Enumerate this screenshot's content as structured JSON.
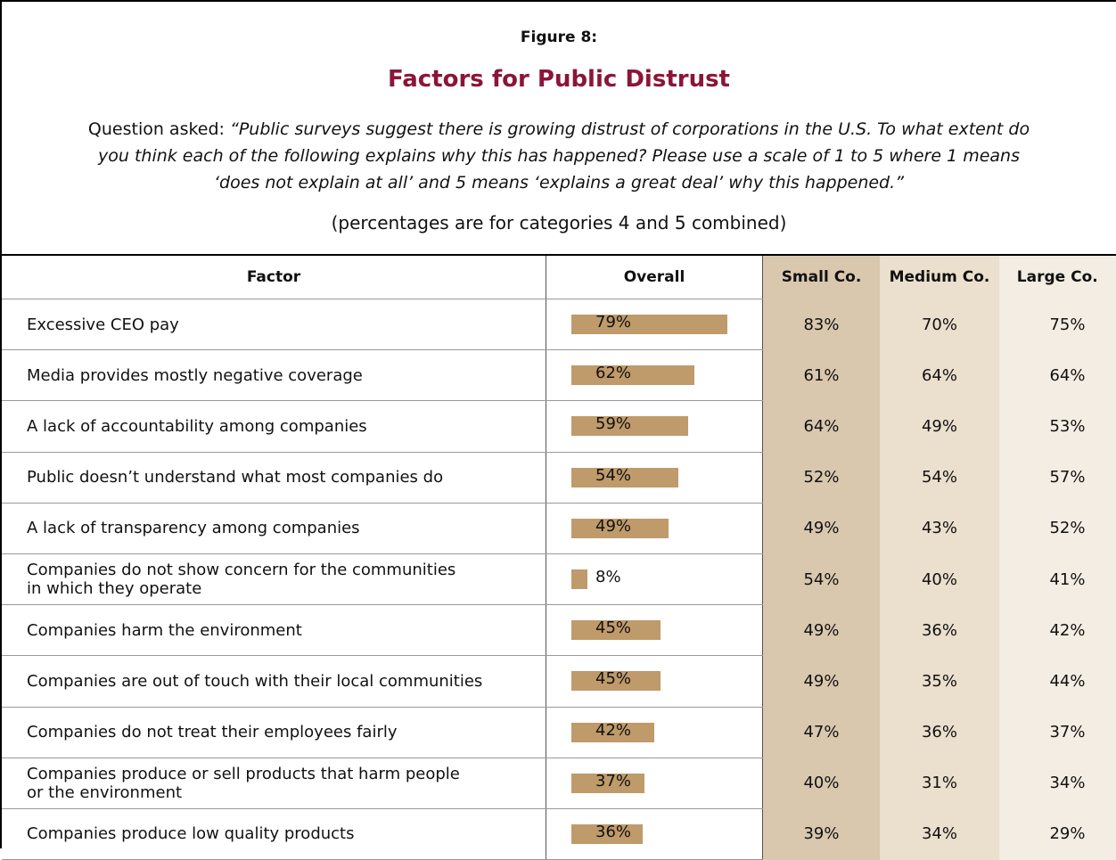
{
  "header": {
    "figure_label": "Figure 8:",
    "title": "Factors for Public Distrust",
    "question_prefix": "Question asked: ",
    "question": "“Public surveys suggest there is growing distrust of corporations in the U.S. To what extent do you think each of the following explains why this has happened? Please use a scale of 1 to 5 where 1 means ‘does not explain at all’ and 5 means ‘explains a great deal’ why this happened.”",
    "note": "(percentages are for categories 4 and 5 combined)"
  },
  "table": {
    "columns": [
      "Factor",
      "Overall",
      "Small Co.",
      "Medium Co.",
      "Large Co."
    ],
    "rows": [
      {
        "factor": "Excessive CEO pay",
        "overall": 79,
        "overall_label": "79%",
        "small": "83%",
        "medium": "70%",
        "large": "75%"
      },
      {
        "factor": "Media provides mostly negative coverage",
        "overall": 62,
        "overall_label": "62%",
        "small": "61%",
        "medium": "64%",
        "large": "64%"
      },
      {
        "factor": "A lack of accountability among companies",
        "overall": 59,
        "overall_label": "59%",
        "small": "64%",
        "medium": "49%",
        "large": "53%"
      },
      {
        "factor": "Public doesn’t understand what most companies do",
        "overall": 54,
        "overall_label": "54%",
        "small": "52%",
        "medium": "54%",
        "large": "57%"
      },
      {
        "factor": "A lack of transparency among companies",
        "overall": 49,
        "overall_label": "49%",
        "small": "49%",
        "medium": "43%",
        "large": "52%"
      },
      {
        "factor": "Companies do not show concern for the communities\nin which they operate",
        "overall": 8,
        "overall_label": "8%",
        "small": "54%",
        "medium": "40%",
        "large": "41%"
      },
      {
        "factor": "Companies harm the environment",
        "overall": 45,
        "overall_label": "45%",
        "small": "49%",
        "medium": "36%",
        "large": "42%"
      },
      {
        "factor": "Companies are out of touch with their local communities",
        "overall": 45,
        "overall_label": "45%",
        "small": "49%",
        "medium": "35%",
        "large": "44%"
      },
      {
        "factor": "Companies do not treat their employees fairly",
        "overall": 42,
        "overall_label": "42%",
        "small": "47%",
        "medium": "36%",
        "large": "37%"
      },
      {
        "factor": "Companies produce or sell products that harm people\nor the environment",
        "overall": 37,
        "overall_label": "37%",
        "small": "40%",
        "medium": "31%",
        "large": "34%"
      },
      {
        "factor": "Companies produce low quality products",
        "overall": 36,
        "overall_label": "36%",
        "small": "39%",
        "medium": "34%",
        "large": "29%"
      }
    ]
  }
}
